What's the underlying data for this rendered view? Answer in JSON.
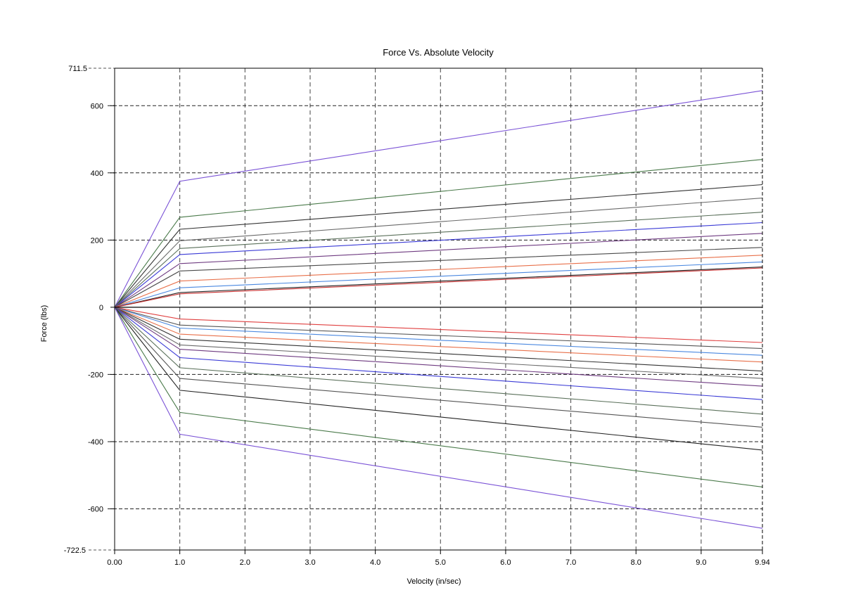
{
  "chart_data": {
    "type": "line",
    "title": "Force Vs. Absolute Velocity",
    "xlabel": "Velocity (in/sec)",
    "ylabel": "Force (lbs)",
    "xlim": [
      0,
      9.94
    ],
    "ylim": [
      -722.5,
      711.5
    ],
    "xticks": [
      "0.00",
      "1.0",
      "2.0",
      "3.0",
      "4.0",
      "5.0",
      "6.0",
      "7.0",
      "8.0",
      "9.0",
      "9.94"
    ],
    "yticks": [
      "711.5",
      "600",
      "400",
      "200",
      "0",
      "-200",
      "-400",
      "-600",
      "-722.5"
    ],
    "x": [
      0,
      1.0,
      9.94
    ],
    "grid": true,
    "series": [
      {
        "color": "#7a52d6",
        "values": [
          0,
          375,
          645
        ]
      },
      {
        "color": "#4a7a4a",
        "values": [
          0,
          268,
          440
        ]
      },
      {
        "color": "#333333",
        "values": [
          0,
          232,
          365
        ]
      },
      {
        "color": "#6a6a6a",
        "values": [
          0,
          198,
          325
        ]
      },
      {
        "color": "#5a705a",
        "values": [
          0,
          175,
          283
        ]
      },
      {
        "color": "#3a3ad6",
        "values": [
          0,
          157,
          252
        ]
      },
      {
        "color": "#6e3a80",
        "values": [
          0,
          130,
          220
        ]
      },
      {
        "color": "#4a4a4a",
        "values": [
          0,
          108,
          178
        ]
      },
      {
        "color": "#e8704a",
        "values": [
          0,
          78,
          155
        ]
      },
      {
        "color": "#4a88e0",
        "values": [
          0,
          58,
          135
        ]
      },
      {
        "color": "#222222",
        "values": [
          0,
          44,
          120
        ]
      },
      {
        "color": "#c83030",
        "values": [
          0,
          40,
          117
        ]
      },
      {
        "color": "#e04040",
        "values": [
          0,
          -35,
          -105
        ]
      },
      {
        "color": "#555555",
        "values": [
          0,
          -53,
          -123
        ]
      },
      {
        "color": "#4a88e0",
        "values": [
          0,
          -62,
          -143
        ]
      },
      {
        "color": "#e8704a",
        "values": [
          0,
          -80,
          -163
        ]
      },
      {
        "color": "#333333",
        "values": [
          0,
          -95,
          -190
        ]
      },
      {
        "color": "#6a6a6a",
        "values": [
          0,
          -112,
          -212
        ]
      },
      {
        "color": "#6e3a80",
        "values": [
          0,
          -125,
          -235
        ]
      },
      {
        "color": "#3a3ad6",
        "values": [
          0,
          -150,
          -275
        ]
      },
      {
        "color": "#5a705a",
        "values": [
          0,
          -180,
          -318
        ]
      },
      {
        "color": "#555555",
        "values": [
          0,
          -212,
          -357
        ]
      },
      {
        "color": "#222222",
        "values": [
          0,
          -247,
          -425
        ]
      },
      {
        "color": "#4a7a4a",
        "values": [
          0,
          -313,
          -535
        ]
      },
      {
        "color": "#7a52d6",
        "values": [
          0,
          -378,
          -658
        ]
      }
    ]
  }
}
